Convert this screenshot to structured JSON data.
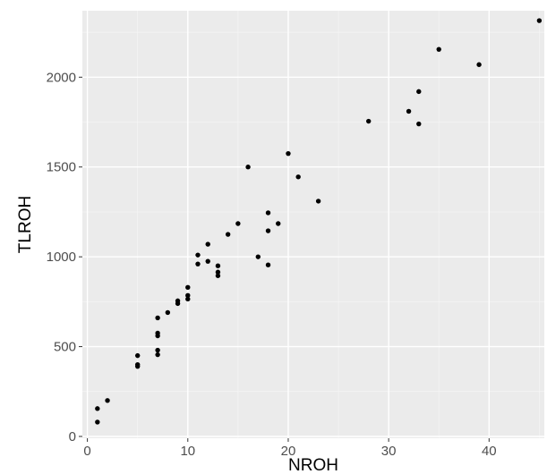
{
  "chart_data": {
    "type": "scatter",
    "title": "",
    "xlabel": "NROH",
    "ylabel": "TLROH",
    "xlim": [
      -0.5,
      45.5
    ],
    "ylim": [
      -10,
      2370
    ],
    "x_ticks": [
      0,
      10,
      20,
      30,
      40
    ],
    "y_ticks": [
      0,
      500,
      1000,
      1500,
      2000
    ],
    "x_tick_labels": [
      "0",
      "10",
      "20",
      "30",
      "40"
    ],
    "y_tick_labels": [
      "0",
      "500",
      "1000",
      "1500",
      "2000"
    ],
    "grid": true,
    "legend": "none",
    "colors": {
      "panel": "#ebebeb",
      "grid_major": "#ffffff",
      "grid_minor": "#f5f5f5",
      "point": "#000000"
    },
    "points": [
      {
        "x": 1,
        "y": 80
      },
      {
        "x": 1,
        "y": 155
      },
      {
        "x": 2,
        "y": 200
      },
      {
        "x": 5,
        "y": 390
      },
      {
        "x": 5,
        "y": 400
      },
      {
        "x": 5,
        "y": 450
      },
      {
        "x": 7,
        "y": 455
      },
      {
        "x": 7,
        "y": 480
      },
      {
        "x": 7,
        "y": 560
      },
      {
        "x": 7,
        "y": 575
      },
      {
        "x": 7,
        "y": 660
      },
      {
        "x": 8,
        "y": 690
      },
      {
        "x": 9,
        "y": 740
      },
      {
        "x": 9,
        "y": 755
      },
      {
        "x": 10,
        "y": 765
      },
      {
        "x": 10,
        "y": 785
      },
      {
        "x": 10,
        "y": 830
      },
      {
        "x": 11,
        "y": 960
      },
      {
        "x": 11,
        "y": 1010
      },
      {
        "x": 12,
        "y": 975
      },
      {
        "x": 12,
        "y": 1070
      },
      {
        "x": 13,
        "y": 895
      },
      {
        "x": 13,
        "y": 915
      },
      {
        "x": 13,
        "y": 950
      },
      {
        "x": 14,
        "y": 1125
      },
      {
        "x": 15,
        "y": 1185
      },
      {
        "x": 16,
        "y": 1500
      },
      {
        "x": 17,
        "y": 1000
      },
      {
        "x": 18,
        "y": 955
      },
      {
        "x": 18,
        "y": 1145
      },
      {
        "x": 18,
        "y": 1245
      },
      {
        "x": 19,
        "y": 1185
      },
      {
        "x": 20,
        "y": 1575
      },
      {
        "x": 21,
        "y": 1445
      },
      {
        "x": 23,
        "y": 1310
      },
      {
        "x": 28,
        "y": 1755
      },
      {
        "x": 32,
        "y": 1810
      },
      {
        "x": 33,
        "y": 1740
      },
      {
        "x": 33,
        "y": 1920
      },
      {
        "x": 35,
        "y": 2155
      },
      {
        "x": 39,
        "y": 2070
      },
      {
        "x": 45,
        "y": 2315
      }
    ]
  }
}
